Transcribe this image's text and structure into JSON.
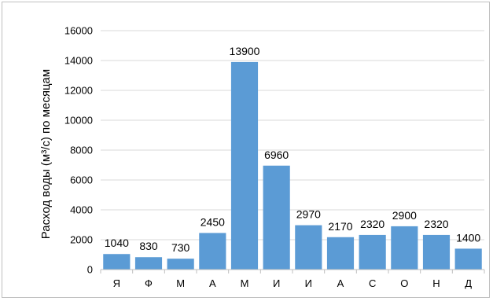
{
  "chart_data": {
    "type": "bar",
    "title": "",
    "xlabel": "",
    "ylabel": "Расход воды (м³/с) по месяцам",
    "categories": [
      "Я",
      "Ф",
      "М",
      "А",
      "М",
      "И",
      "И",
      "А",
      "С",
      "О",
      "Н",
      "Д"
    ],
    "values": [
      1040,
      830,
      730,
      2450,
      13900,
      6960,
      2970,
      2170,
      2320,
      2900,
      2320,
      1400
    ],
    "data_labels": [
      "1040",
      "830",
      "730",
      "2450",
      "13900",
      "6960",
      "2970",
      "2170",
      "2320",
      "2900",
      "2320",
      "1400"
    ],
    "yticks": [
      "0",
      "2000",
      "4000",
      "6000",
      "8000",
      "10000",
      "12000",
      "14000",
      "16000"
    ],
    "ylim": [
      0,
      16000
    ],
    "grid": true,
    "legend": "none",
    "bar_color": "#5b9bd5",
    "grid_color": "#d9d9d9"
  }
}
